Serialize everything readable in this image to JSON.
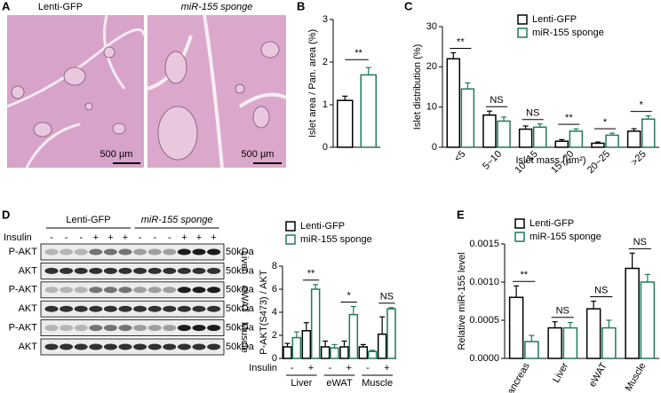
{
  "panel_labels": [
    "A",
    "B",
    "C",
    "D",
    "E"
  ],
  "histology": {
    "titles": [
      "Lenti-GFP",
      "miR-155 sponge"
    ],
    "scale_bars": [
      "500 µm",
      "500 µm"
    ]
  },
  "blot": {
    "groups": [
      "Lenti-GFP",
      "miR-155 sponge"
    ],
    "treatment": "Insulin",
    "signs": [
      "-",
      "-",
      "-",
      "+",
      "+",
      "+",
      "-",
      "-",
      "-",
      "+",
      "+",
      "+"
    ],
    "rows": [
      "P-AKT",
      "AKT",
      "P-AKT",
      "AKT",
      "P-AKT",
      "AKT"
    ],
    "marker": [
      "50kDa",
      "50kDa",
      "50kDa",
      "50kDa",
      "50kDa",
      "50kDa"
    ],
    "tissues": [
      "Liver",
      "eWAT",
      "Muscle"
    ]
  },
  "chart_data": [
    {
      "type": "bar",
      "ylabel": "Islet area / Pan. area (%)",
      "categories": [
        null,
        null
      ],
      "values": [
        1.1,
        1.7
      ],
      "errors": [
        0.1,
        0.17
      ],
      "colors": [
        "#000000",
        "#1f7a5c"
      ],
      "ylim": [
        0,
        3
      ],
      "yticks": [
        0,
        1,
        2,
        3
      ],
      "annotation": "**"
    },
    {
      "type": "bar",
      "ylabel": "Islet distribution (%)",
      "xlabel": "Islet mass (µm²)",
      "categories": [
        "<5",
        "5~10",
        "10~15",
        "15~20",
        "20~25",
        ">25"
      ],
      "series": [
        {
          "name": "Lenti-GFP",
          "color": "#000000",
          "values": [
            22,
            8,
            4.5,
            1.5,
            1,
            4
          ],
          "errors": [
            1.5,
            1,
            0.8,
            0.4,
            0.3,
            0.6
          ]
        },
        {
          "name": "miR-155 sponge",
          "color": "#1f7a5c",
          "values": [
            14.5,
            6.5,
            5,
            4,
            3,
            7
          ],
          "errors": [
            1.5,
            1,
            0.8,
            0.6,
            0.5,
            0.8
          ]
        }
      ],
      "ylim": [
        0,
        30
      ],
      "yticks": [
        0,
        10,
        20,
        30
      ],
      "annotations": [
        "**",
        "NS",
        "NS",
        "**",
        "*",
        "*"
      ]
    },
    {
      "type": "bar",
      "ylabel": "P-AKT(S473) / AKT",
      "xprefix": "Insulin",
      "categories": [
        "-",
        "+",
        "-",
        "+",
        "-",
        "+"
      ],
      "groups": [
        "Liver",
        "eWAT",
        "Muscle"
      ],
      "series": [
        {
          "name": "Lenti-GFP",
          "color": "#000000",
          "values": [
            1,
            2.4,
            1,
            1,
            1,
            2.1
          ],
          "errors": [
            0.3,
            0.7,
            0.5,
            0.5,
            0.2,
            1.5
          ]
        },
        {
          "name": "miR-155 sponge",
          "color": "#1f7a5c",
          "values": [
            1.8,
            6,
            0.9,
            3.8,
            0.6,
            4.3
          ],
          "errors": [
            0.5,
            0.4,
            0.3,
            0.7,
            0.1,
            0.1
          ]
        }
      ],
      "ylim": [
        0,
        8
      ],
      "yticks": [
        0,
        2,
        4,
        6,
        8
      ],
      "annotations": [
        null,
        "**",
        null,
        "*",
        null,
        "NS"
      ]
    },
    {
      "type": "bar",
      "ylabel": "Relative miR-155 level",
      "categories": [
        "Pancreas",
        "Liver",
        "eWAT",
        "Muscle"
      ],
      "series": [
        {
          "name": "Lenti-GFP",
          "color": "#000000",
          "values": [
            0.0008,
            0.0004,
            0.00065,
            0.00118
          ],
          "errors": [
            0.00015,
            8e-05,
            0.0001,
            0.0002
          ]
        },
        {
          "name": "miR-155 sponge",
          "color": "#1f7a5c",
          "values": [
            0.00022,
            0.0004,
            0.0004,
            0.001
          ],
          "errors": [
            8e-05,
            7e-05,
            0.0001,
            0.0001
          ]
        }
      ],
      "ylim": [
        0,
        0.0015
      ],
      "yticks": [
        {
          "value": 0,
          "label": "0.0000"
        },
        0.0005,
        {
          "value": 0.001,
          "label": "0.0010"
        },
        0.0015
      ],
      "annotations": [
        "**",
        "NS",
        "NS",
        "NS"
      ]
    }
  ]
}
